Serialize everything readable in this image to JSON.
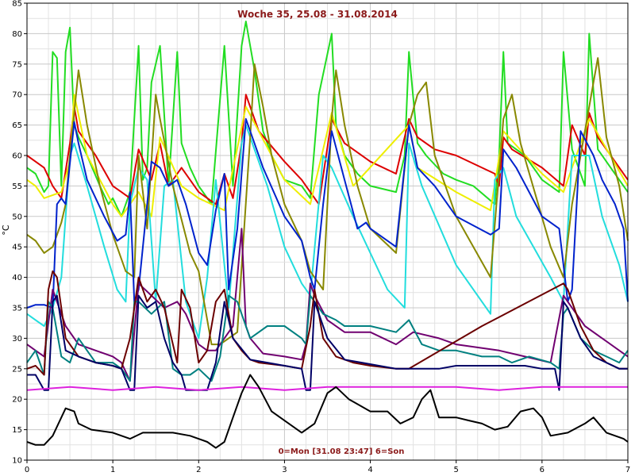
{
  "chart_data": {
    "type": "line",
    "title": "Woche 35, 25.08 - 31.08.2014",
    "footer": "0=Mon [31.08 23:47] 6=Son",
    "ylabel": "°C",
    "xlabel": "",
    "xlim": [
      0,
      7
    ],
    "ylim": [
      10,
      85
    ],
    "xticks": [
      "0",
      "1",
      "2",
      "3",
      "4",
      "5",
      "6",
      "7"
    ],
    "yticks": [
      "10",
      "15",
      "20",
      "25",
      "30",
      "35",
      "40",
      "45",
      "50",
      "55",
      "60",
      "65",
      "70",
      "75",
      "80",
      "85"
    ],
    "grid": true,
    "series": [
      {
        "color": "#22dd22",
        "x": [
          0,
          0.1,
          0.2,
          0.25,
          0.3,
          0.35,
          0.4,
          0.45,
          0.5,
          0.55,
          0.6,
          0.7,
          0.85,
          0.95,
          1.0,
          1.1,
          1.2,
          1.3,
          1.35,
          1.4,
          1.45,
          1.55,
          1.65,
          1.75,
          1.8,
          1.9,
          2.0,
          2.15,
          2.3,
          2.4,
          2.5,
          2.55,
          2.65,
          2.75,
          2.85,
          3.0,
          3.2,
          3.3,
          3.4,
          3.55,
          3.6,
          3.7,
          3.85,
          4.0,
          4.3,
          4.4,
          4.45,
          4.55,
          4.65,
          4.85,
          5.0,
          5.2,
          5.45,
          5.5,
          5.55,
          5.6,
          5.8,
          6.0,
          6.2,
          6.25,
          6.35,
          6.5,
          6.55,
          6.65,
          6.8,
          6.95,
          7.0
        ],
        "values": [
          58,
          57,
          54,
          55,
          77,
          76,
          55,
          77,
          81,
          65,
          63,
          60,
          55,
          52,
          53,
          50,
          54,
          78,
          56,
          58,
          72,
          78,
          55,
          77,
          62,
          58,
          55,
          52,
          78,
          55,
          78,
          82,
          74,
          64,
          60,
          56,
          55,
          53,
          70,
          80,
          65,
          60,
          57,
          55,
          54,
          60,
          77,
          62,
          60,
          57,
          56,
          55,
          52,
          60,
          77,
          62,
          60,
          56,
          54,
          77,
          61,
          55,
          80,
          61,
          58,
          55,
          54
        ]
      },
      {
        "color": "#dd0000",
        "x": [
          0,
          0.1,
          0.2,
          0.3,
          0.4,
          0.5,
          0.55,
          0.6,
          0.8,
          1.0,
          1.1,
          1.2,
          1.3,
          1.45,
          1.55,
          1.65,
          1.8,
          2.0,
          2.2,
          2.3,
          2.4,
          2.5,
          2.55,
          2.7,
          3.0,
          3.2,
          3.3,
          3.4,
          3.55,
          3.7,
          4.0,
          4.3,
          4.45,
          4.55,
          4.75,
          5.0,
          5.45,
          5.5,
          5.55,
          5.65,
          6.0,
          6.25,
          6.35,
          6.5,
          6.55,
          6.65,
          7.0
        ],
        "values": [
          60,
          59,
          58,
          55,
          53,
          62,
          68,
          64,
          60,
          55,
          54,
          53,
          61,
          56,
          62,
          55,
          58,
          54,
          52,
          57,
          53,
          62,
          70,
          64,
          59,
          56,
          54,
          52,
          66,
          62,
          59,
          57,
          66,
          63,
          61,
          60,
          57,
          55,
          63,
          61,
          58,
          55,
          65,
          60,
          67,
          63,
          56
        ]
      },
      {
        "color": "#eeee00",
        "x": [
          0,
          0.1,
          0.2,
          0.4,
          0.5,
          0.55,
          0.7,
          1.0,
          1.1,
          1.3,
          1.45,
          1.55,
          1.8,
          2.0,
          2.3,
          2.55,
          3.0,
          3.3,
          3.55,
          3.8,
          4.45,
          4.55,
          5.0,
          5.4,
          5.55,
          6.0,
          6.25,
          6.55,
          7.0
        ],
        "values": [
          56,
          55,
          53,
          54,
          59,
          70,
          60,
          52,
          50,
          54,
          50,
          63,
          55,
          53,
          51,
          68,
          56,
          52,
          67,
          55,
          65,
          58,
          54,
          51,
          64,
          57,
          54,
          66,
          55
        ]
      },
      {
        "color": "#22dddd",
        "x": [
          0,
          0.1,
          0.2,
          0.3,
          0.4,
          0.5,
          0.55,
          0.7,
          0.9,
          1.05,
          1.15,
          1.2,
          1.3,
          1.4,
          1.5,
          1.6,
          1.7,
          1.85,
          2.0,
          2.1,
          2.2,
          2.35,
          2.5,
          2.55,
          2.8,
          3.0,
          3.2,
          3.3,
          3.45,
          3.55,
          3.8,
          4.2,
          4.4,
          4.45,
          4.6,
          5.0,
          5.4,
          5.45,
          5.55,
          5.7,
          6.1,
          6.25,
          6.35,
          6.55,
          6.7,
          6.9,
          7.0
        ],
        "values": [
          34,
          33,
          32,
          35,
          40,
          60,
          62,
          55,
          45,
          38,
          36,
          52,
          58,
          56,
          36,
          55,
          56,
          36,
          30,
          40,
          56,
          35,
          62,
          65,
          55,
          45,
          39,
          37,
          60,
          58,
          50,
          38,
          35,
          62,
          55,
          42,
          34,
          56,
          58,
          50,
          40,
          36,
          60,
          60,
          50,
          42,
          36
        ]
      },
      {
        "color": "#888800",
        "x": [
          0,
          0.1,
          0.2,
          0.3,
          0.4,
          0.45,
          0.5,
          0.6,
          0.7,
          0.85,
          1.0,
          1.15,
          1.25,
          1.3,
          1.4,
          1.5,
          1.55,
          1.7,
          1.9,
          2.0,
          2.15,
          2.25,
          2.35,
          2.45,
          2.6,
          2.65,
          2.75,
          2.85,
          3.0,
          3.2,
          3.3,
          3.45,
          3.55,
          3.6,
          3.7,
          3.85,
          4.0,
          4.3,
          4.45,
          4.55,
          4.65,
          4.75,
          5.0,
          5.4,
          5.55,
          5.65,
          5.75,
          6.1,
          6.25,
          6.35,
          6.6,
          6.65,
          6.75,
          6.9,
          7.0
        ],
        "values": [
          47,
          46,
          44,
          45,
          49,
          52,
          60,
          74,
          65,
          55,
          47,
          41,
          40,
          60,
          48,
          70,
          66,
          55,
          44,
          41,
          29,
          29,
          30,
          31,
          63,
          75,
          68,
          60,
          52,
          46,
          41,
          38,
          66,
          74,
          65,
          55,
          48,
          44,
          65,
          70,
          72,
          60,
          50,
          40,
          66,
          70,
          62,
          45,
          40,
          52,
          72,
          76,
          63,
          55,
          46
        ]
      },
      {
        "color": "#0022cc",
        "x": [
          0,
          0.1,
          0.2,
          0.3,
          0.35,
          0.4,
          0.45,
          0.55,
          0.6,
          0.7,
          0.9,
          1.05,
          1.15,
          1.2,
          1.25,
          1.3,
          1.45,
          1.55,
          1.65,
          1.75,
          1.85,
          2.0,
          2.1,
          2.2,
          2.3,
          2.35,
          2.45,
          2.55,
          2.6,
          2.75,
          3.0,
          3.2,
          3.3,
          3.35,
          3.45,
          3.55,
          3.7,
          3.85,
          3.95,
          4.0,
          4.3,
          4.45,
          4.55,
          4.75,
          5.0,
          5.4,
          5.5,
          5.55,
          5.7,
          6.0,
          6.2,
          6.3,
          6.35,
          6.45,
          6.6,
          6.7,
          6.85,
          6.95,
          7.0
        ],
        "values": [
          35,
          35.5,
          35.5,
          35,
          52,
          53,
          52,
          65.5,
          62,
          56,
          50,
          46,
          47,
          54,
          36,
          38,
          59,
          58,
          55,
          56,
          52,
          44,
          42,
          51,
          57,
          38,
          48,
          66,
          64,
          58,
          50,
          46,
          40,
          38,
          52,
          64,
          56,
          48,
          49,
          48,
          45,
          65,
          58,
          55,
          50,
          47,
          48,
          61,
          58,
          50,
          48,
          36,
          38,
          64,
          60,
          56,
          52,
          48,
          36
        ]
      },
      {
        "color": "#700070",
        "x": [
          0,
          0.1,
          0.2,
          0.3,
          0.45,
          0.6,
          0.8,
          1.0,
          1.1,
          1.2,
          1.3,
          1.45,
          1.6,
          1.75,
          1.85,
          2.0,
          2.1,
          2.2,
          2.3,
          2.4,
          2.5,
          2.55,
          2.6,
          2.75,
          3.0,
          3.2,
          3.25,
          3.3,
          3.35,
          3.5,
          3.7,
          4.0,
          4.3,
          4.5,
          4.8,
          5.0,
          5.5,
          5.8,
          6.1,
          6.25,
          6.3,
          6.5,
          6.7,
          6.9,
          7.0
        ],
        "values": [
          29,
          28,
          27,
          38,
          32,
          29,
          28,
          27,
          26,
          23,
          39,
          37,
          35,
          36,
          34,
          29,
          28,
          28,
          30,
          32,
          48,
          32,
          30,
          27.5,
          27,
          26.5,
          29,
          39,
          37,
          33,
          31,
          31,
          29,
          31,
          30,
          29,
          28,
          27,
          26,
          37,
          36,
          32,
          30,
          28,
          27
        ]
      },
      {
        "color": "#008080",
        "x": [
          0,
          0.05,
          0.1,
          0.2,
          0.25,
          0.3,
          0.4,
          0.5,
          0.6,
          0.7,
          0.8,
          1.0,
          1.1,
          1.2,
          1.25,
          1.3,
          1.45,
          1.6,
          1.7,
          1.8,
          1.9,
          2.0,
          2.15,
          2.25,
          2.35,
          2.45,
          2.6,
          2.8,
          3.0,
          3.2,
          3.25,
          3.3,
          3.45,
          3.6,
          3.7,
          3.85,
          4.0,
          4.3,
          4.45,
          4.6,
          4.8,
          5.0,
          5.3,
          5.5,
          5.65,
          5.85,
          6.1,
          6.2,
          6.25,
          6.3,
          6.45,
          6.6,
          6.75,
          6.9,
          7.0
        ],
        "values": [
          26,
          27,
          28,
          24,
          36,
          35,
          27,
          26,
          30,
          28,
          26,
          26,
          25,
          23,
          36,
          36,
          34,
          36,
          25,
          24,
          24,
          25,
          23,
          27,
          37,
          36,
          30,
          32,
          32,
          30,
          29,
          37,
          34,
          33,
          32,
          32,
          32,
          31,
          33,
          29,
          28,
          28,
          27,
          27,
          26,
          27,
          26,
          25,
          34,
          35,
          30,
          28,
          27,
          26,
          28
        ]
      },
      {
        "color": "#6b0000",
        "x": [
          0,
          0.1,
          0.2,
          0.25,
          0.3,
          0.35,
          0.45,
          0.6,
          0.8,
          1.0,
          1.1,
          1.2,
          1.3,
          1.4,
          1.5,
          1.6,
          1.75,
          1.8,
          1.9,
          2.0,
          2.1,
          2.2,
          2.3,
          2.4,
          2.5,
          2.6,
          2.7,
          3.0,
          3.2,
          3.3,
          3.35,
          3.45,
          3.6,
          3.8,
          4.0,
          4.3,
          4.45,
          5.3,
          6.25,
          6.3,
          6.45,
          6.6,
          6.75,
          6.9,
          7.0
        ],
        "values": [
          25,
          25.5,
          24,
          38,
          41,
          40,
          30,
          27,
          26,
          25.5,
          25,
          30,
          40,
          36,
          38,
          35,
          26,
          38,
          35,
          26,
          28,
          36,
          38,
          30,
          28,
          26.5,
          26,
          25.5,
          25,
          32,
          38,
          30,
          27,
          26,
          25.5,
          25,
          25,
          32,
          39,
          38,
          32,
          28,
          26,
          25,
          25
        ]
      },
      {
        "color": "#000066",
        "x": [
          0,
          0.1,
          0.2,
          0.25,
          0.3,
          0.35,
          0.45,
          0.6,
          0.8,
          1.0,
          1.1,
          1.2,
          1.25,
          1.3,
          1.4,
          1.5,
          1.6,
          1.7,
          1.8,
          1.85,
          2.0,
          2.1,
          2.2,
          2.3,
          2.4,
          2.6,
          2.8,
          3.0,
          3.2,
          3.25,
          3.3,
          3.35,
          3.5,
          3.7,
          3.9,
          4.1,
          4.3,
          4.5,
          4.8,
          5.0,
          5.3,
          5.5,
          5.8,
          6.0,
          6.15,
          6.2,
          6.25,
          6.3,
          6.45,
          6.6,
          6.75,
          6.9,
          7.0
        ],
        "values": [
          24,
          24,
          21.5,
          21.5,
          36,
          37,
          28,
          27,
          26,
          25.5,
          25,
          21.5,
          21.5,
          37,
          35,
          36,
          30,
          26,
          24,
          21.5,
          21.5,
          21.5,
          26,
          36,
          30,
          26.5,
          26,
          25.5,
          25,
          21.5,
          21.5,
          36,
          30,
          26.5,
          26,
          25.5,
          25,
          25,
          25,
          25.5,
          25.5,
          25.5,
          25.5,
          25,
          25,
          21.5,
          36,
          35,
          30,
          27,
          26,
          25,
          25
        ]
      },
      {
        "color": "#dd22dd",
        "x": [
          0,
          0.5,
          1.0,
          1.5,
          2.0,
          2.5,
          3.0,
          3.5,
          4.0,
          4.5,
          5.0,
          5.5,
          6.0,
          6.5,
          7.0
        ],
        "values": [
          21.5,
          22,
          21.5,
          22,
          21.5,
          22,
          21.5,
          22,
          22,
          22,
          22,
          21.5,
          22,
          22,
          22
        ]
      },
      {
        "color": "#000000",
        "x": [
          0,
          0.1,
          0.2,
          0.3,
          0.45,
          0.55,
          0.6,
          0.75,
          1.0,
          1.2,
          1.35,
          1.5,
          1.7,
          1.9,
          2.1,
          2.2,
          2.3,
          2.4,
          2.5,
          2.6,
          2.7,
          2.85,
          3.0,
          3.2,
          3.35,
          3.5,
          3.6,
          3.75,
          4.0,
          4.2,
          4.35,
          4.5,
          4.6,
          4.7,
          4.8,
          5.0,
          5.15,
          5.3,
          5.45,
          5.6,
          5.75,
          5.9,
          6.0,
          6.1,
          6.3,
          6.5,
          6.6,
          6.75,
          6.95,
          7.0
        ],
        "values": [
          13,
          12.5,
          12.5,
          14,
          18.5,
          18,
          16,
          15,
          14.5,
          13.5,
          14.5,
          14.5,
          14.5,
          14,
          13,
          12,
          13,
          17,
          21,
          24,
          22,
          18,
          16.5,
          14.5,
          16,
          21,
          22,
          20,
          18,
          18,
          16,
          17,
          20,
          21.5,
          17,
          17,
          16.5,
          16,
          15,
          15.5,
          18,
          18.5,
          17,
          14,
          14.5,
          16,
          17,
          14.5,
          13.5,
          13
        ]
      }
    ]
  }
}
